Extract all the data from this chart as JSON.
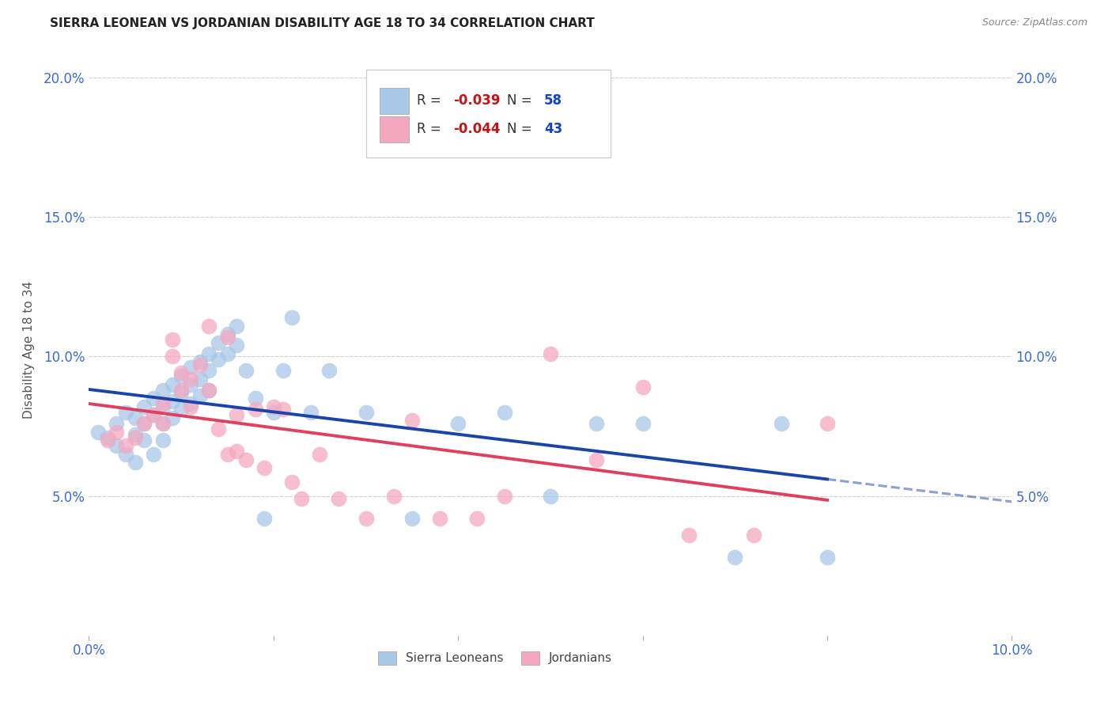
{
  "title": "SIERRA LEONEAN VS JORDANIAN DISABILITY AGE 18 TO 34 CORRELATION CHART",
  "source": "Source: ZipAtlas.com",
  "ylabel": "Disability Age 18 to 34",
  "xlim": [
    0.0,
    0.1
  ],
  "ylim": [
    0.0,
    0.205
  ],
  "xticks": [
    0.0,
    0.02,
    0.04,
    0.06,
    0.08,
    0.1
  ],
  "xticklabels": [
    "0.0%",
    "",
    "",
    "",
    "",
    "10.0%"
  ],
  "yticks": [
    0.0,
    0.05,
    0.1,
    0.15,
    0.2
  ],
  "yticklabels": [
    "",
    "5.0%",
    "10.0%",
    "15.0%",
    "20.0%"
  ],
  "sl_color": "#a8c8e8",
  "jo_color": "#f4a8c0",
  "sl_line_color": "#1a44aa",
  "jo_line_color": "#e04060",
  "sl_R": "-0.039",
  "sl_N": "58",
  "jo_R": "-0.044",
  "jo_N": "43",
  "background_color": "#ffffff",
  "grid_color": "#d0d0d0",
  "sl_x": [
    0.001,
    0.002,
    0.003,
    0.003,
    0.004,
    0.004,
    0.005,
    0.005,
    0.005,
    0.006,
    0.006,
    0.006,
    0.007,
    0.007,
    0.007,
    0.008,
    0.008,
    0.008,
    0.008,
    0.009,
    0.009,
    0.009,
    0.01,
    0.01,
    0.01,
    0.011,
    0.011,
    0.011,
    0.012,
    0.012,
    0.012,
    0.013,
    0.013,
    0.013,
    0.014,
    0.014,
    0.015,
    0.015,
    0.016,
    0.016,
    0.017,
    0.018,
    0.019,
    0.02,
    0.021,
    0.022,
    0.024,
    0.026,
    0.03,
    0.035,
    0.04,
    0.045,
    0.05,
    0.055,
    0.06,
    0.07,
    0.075,
    0.08
  ],
  "sl_y": [
    0.073,
    0.071,
    0.076,
    0.068,
    0.08,
    0.065,
    0.078,
    0.072,
    0.062,
    0.082,
    0.076,
    0.07,
    0.085,
    0.079,
    0.065,
    0.088,
    0.082,
    0.076,
    0.07,
    0.09,
    0.084,
    0.078,
    0.093,
    0.087,
    0.081,
    0.096,
    0.09,
    0.083,
    0.098,
    0.092,
    0.086,
    0.101,
    0.095,
    0.088,
    0.105,
    0.099,
    0.108,
    0.101,
    0.111,
    0.104,
    0.095,
    0.085,
    0.042,
    0.08,
    0.095,
    0.114,
    0.08,
    0.095,
    0.08,
    0.042,
    0.076,
    0.08,
    0.05,
    0.076,
    0.076,
    0.028,
    0.076,
    0.028
  ],
  "jo_x": [
    0.002,
    0.003,
    0.004,
    0.005,
    0.006,
    0.007,
    0.008,
    0.008,
    0.009,
    0.009,
    0.01,
    0.01,
    0.011,
    0.011,
    0.012,
    0.013,
    0.013,
    0.014,
    0.015,
    0.015,
    0.016,
    0.016,
    0.017,
    0.018,
    0.019,
    0.02,
    0.021,
    0.022,
    0.023,
    0.025,
    0.027,
    0.03,
    0.033,
    0.035,
    0.038,
    0.042,
    0.045,
    0.05,
    0.055,
    0.06,
    0.065,
    0.072,
    0.08
  ],
  "jo_y": [
    0.07,
    0.073,
    0.068,
    0.071,
    0.076,
    0.079,
    0.083,
    0.076,
    0.106,
    0.1,
    0.094,
    0.088,
    0.092,
    0.082,
    0.097,
    0.111,
    0.088,
    0.074,
    0.065,
    0.107,
    0.079,
    0.066,
    0.063,
    0.081,
    0.06,
    0.082,
    0.081,
    0.055,
    0.049,
    0.065,
    0.049,
    0.042,
    0.05,
    0.077,
    0.042,
    0.042,
    0.05,
    0.101,
    0.063,
    0.089,
    0.036,
    0.036,
    0.076
  ]
}
